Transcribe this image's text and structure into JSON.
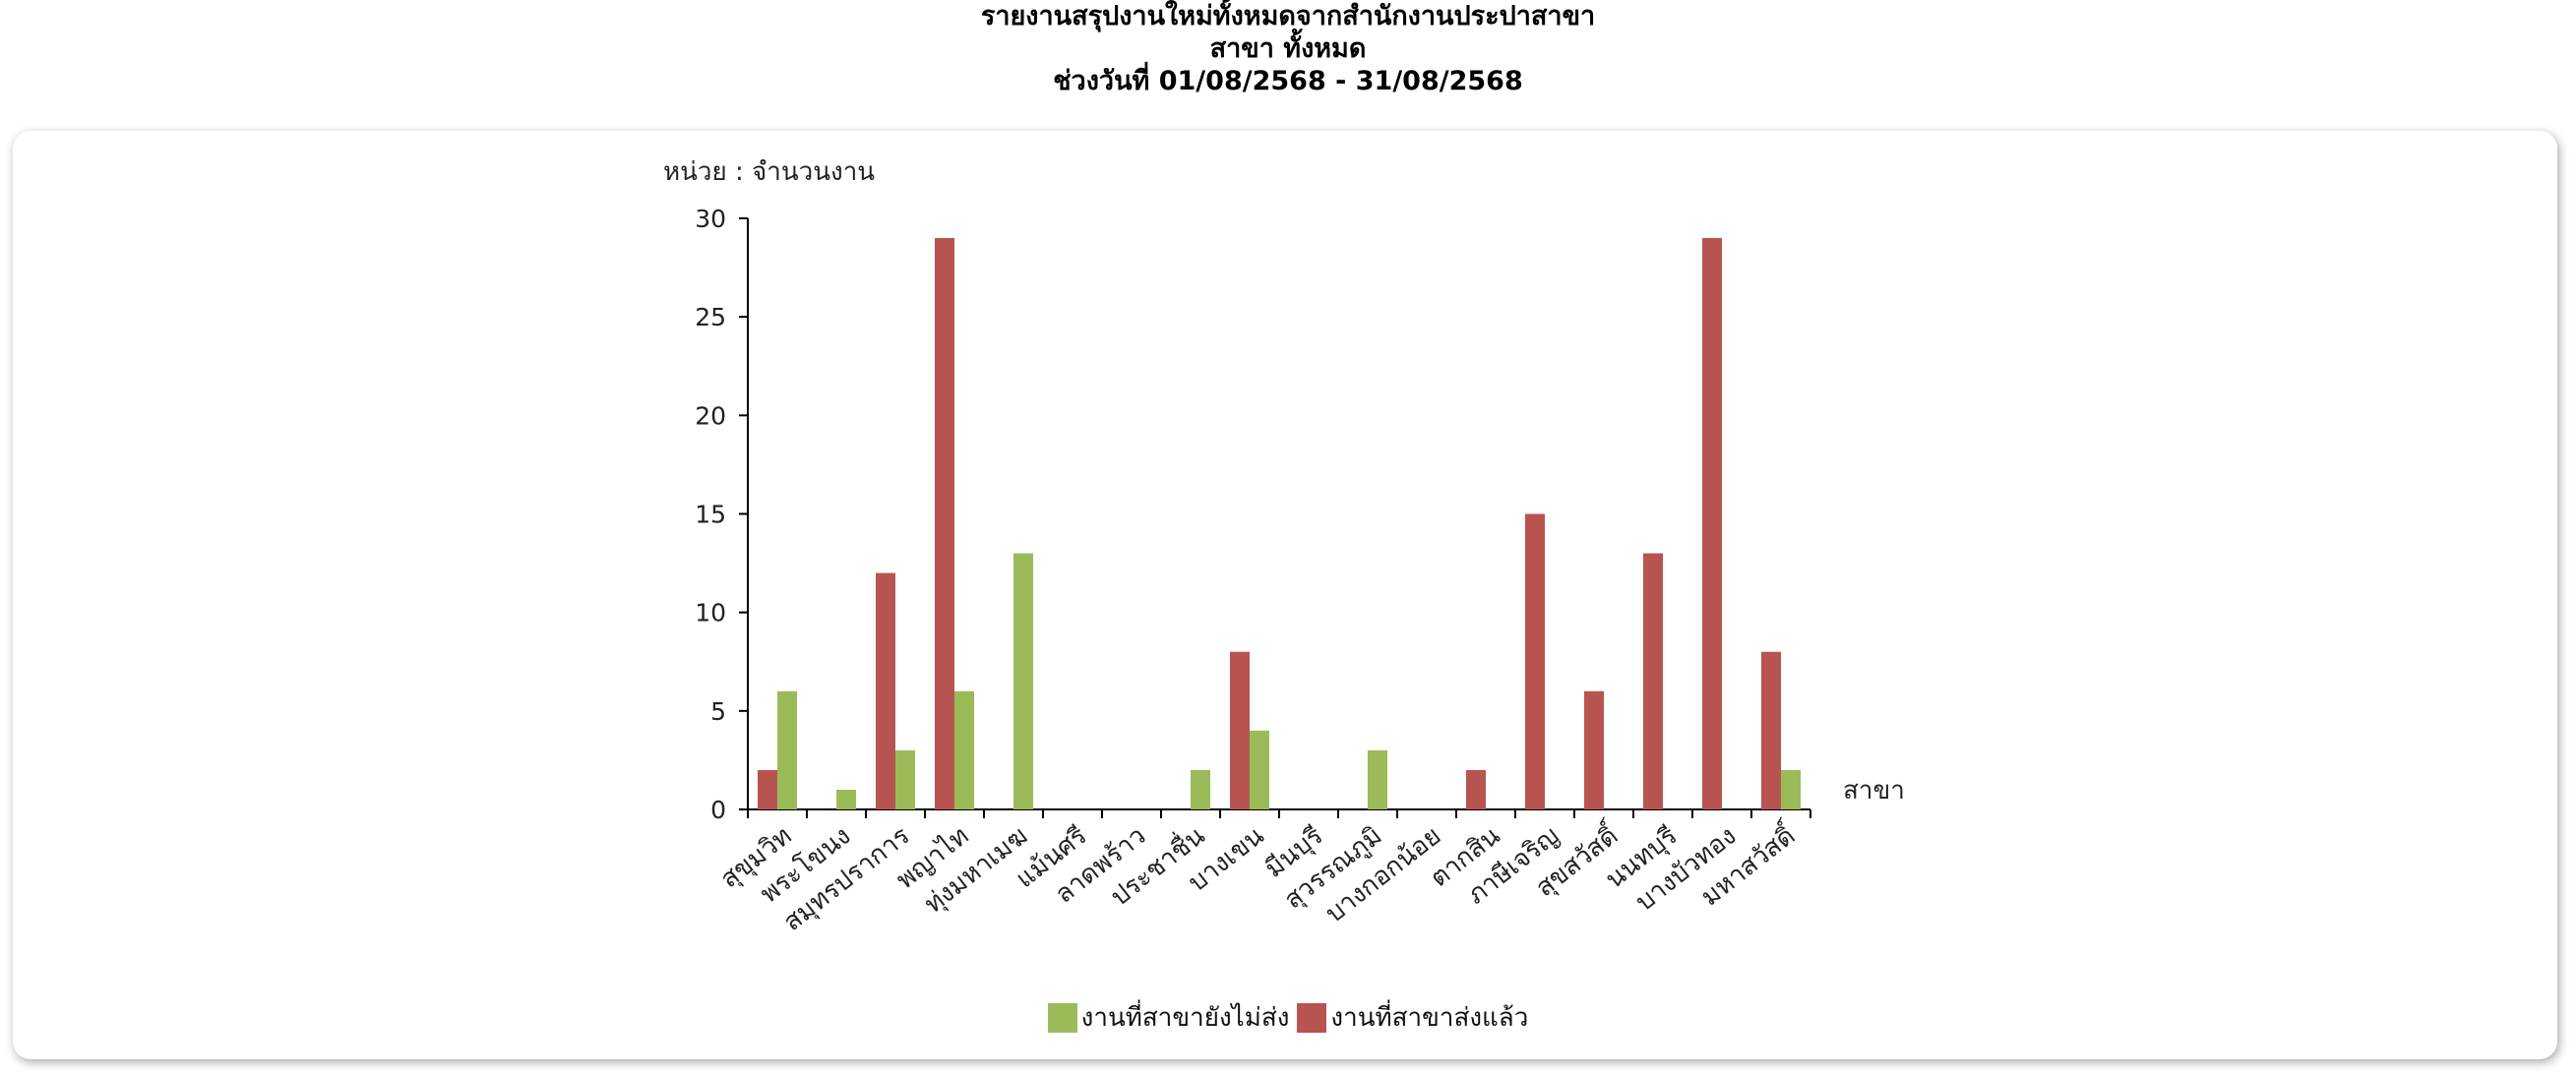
{
  "header": {
    "title": "รายงานสรุปงานใหม่ทั้งหมดจากสำนักงานประปาสาขา",
    "subtitle": "สาขา ทั้งหมด",
    "date_range": "ช่วงวันที่ 01/08/2568 - 31/08/2568"
  },
  "chart_data": {
    "type": "bar",
    "unit_label": "หน่วย : จำนวนงาน",
    "xlabel": "สาขา",
    "ylabel": "",
    "ylim": [
      0,
      30
    ],
    "yticks": [
      0,
      5,
      10,
      15,
      20,
      25,
      30
    ],
    "grid": false,
    "legend_position": "bottom",
    "categories": [
      "สุขุมวิท",
      "พระโขนง",
      "สมุทรปราการ",
      "พญาไท",
      "ทุ่งมหาเมฆ",
      "แม้นศรี",
      "ลาดพร้าว",
      "ประชาชื่น",
      "บางเขน",
      "มีนบุรี",
      "สุวรรณภูมิ",
      "บางกอกน้อย",
      "ตากสิน",
      "ภาษีเจริญ",
      "สุขสวัสดิ์",
      "นนทบุรี",
      "บางบัวทอง",
      "มหาสวัสดิ์"
    ],
    "series": [
      {
        "name": "งานที่สาขาส่งแล้ว",
        "color": "#b85450",
        "values": [
          2,
          0,
          12,
          29,
          0,
          0,
          0,
          0,
          8,
          0,
          0,
          0,
          2,
          15,
          6,
          13,
          29,
          8
        ]
      },
      {
        "name": "งานที่สาขายังไม่ส่ง",
        "color": "#9bbb59",
        "values": [
          6,
          1,
          3,
          6,
          13,
          0,
          0,
          2,
          4,
          0,
          3,
          0,
          0,
          0,
          0,
          0,
          0,
          2
        ]
      }
    ],
    "legend_order": [
      1,
      0
    ]
  }
}
